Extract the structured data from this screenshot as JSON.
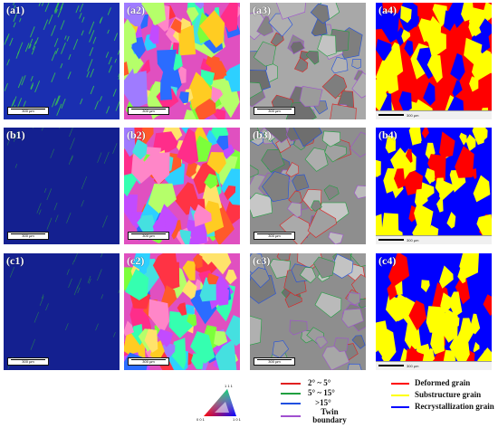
{
  "panels": [
    {
      "id": "a1",
      "label": "(a1)",
      "type": "bc",
      "scale": "300 µm"
    },
    {
      "id": "a2",
      "label": "(a2)",
      "type": "ipf",
      "scale": "300 µm"
    },
    {
      "id": "a3",
      "label": "(a3)",
      "type": "gb",
      "scale": "300 µm"
    },
    {
      "id": "a4",
      "label": "(a4)",
      "type": "def",
      "scale": "300 µm"
    },
    {
      "id": "b1",
      "label": "(b1)",
      "type": "bc",
      "scale": "300 µm"
    },
    {
      "id": "b2",
      "label": "(b2)",
      "type": "ipf",
      "scale": "300 µm"
    },
    {
      "id": "b3",
      "label": "(b3)",
      "type": "gb",
      "scale": "300 µm"
    },
    {
      "id": "b4",
      "label": "(b4)",
      "type": "def",
      "scale": "300 µm"
    },
    {
      "id": "c1",
      "label": "(c1)",
      "type": "bc",
      "scale": "300 µm"
    },
    {
      "id": "c2",
      "label": "(c2)",
      "type": "ipf",
      "scale": "300 µm"
    },
    {
      "id": "c3",
      "label": "(c3)",
      "type": "gb",
      "scale": "300 µm"
    },
    {
      "id": "c4",
      "label": "(c4)",
      "type": "def",
      "scale": "300 µm"
    }
  ],
  "ipf_key": {
    "top": "1 1 1",
    "left": "0 0 1",
    "right": "1 0 1"
  },
  "boundary_legend": [
    {
      "label": "2° ~ 5°",
      "color": "#e02020"
    },
    {
      "label": "5° ~ 15°",
      "color": "#20a040"
    },
    {
      "label": ">15°",
      "color": "#2050e0"
    },
    {
      "label": "Twin boundary",
      "color": "#a050d0"
    }
  ],
  "grain_legend": [
    {
      "label": "Deformed grain",
      "color": "#ff0000"
    },
    {
      "label": "Substructure grain",
      "color": "#ffff00"
    },
    {
      "label": "Recrystallization grain",
      "color": "#0000ff"
    }
  ]
}
